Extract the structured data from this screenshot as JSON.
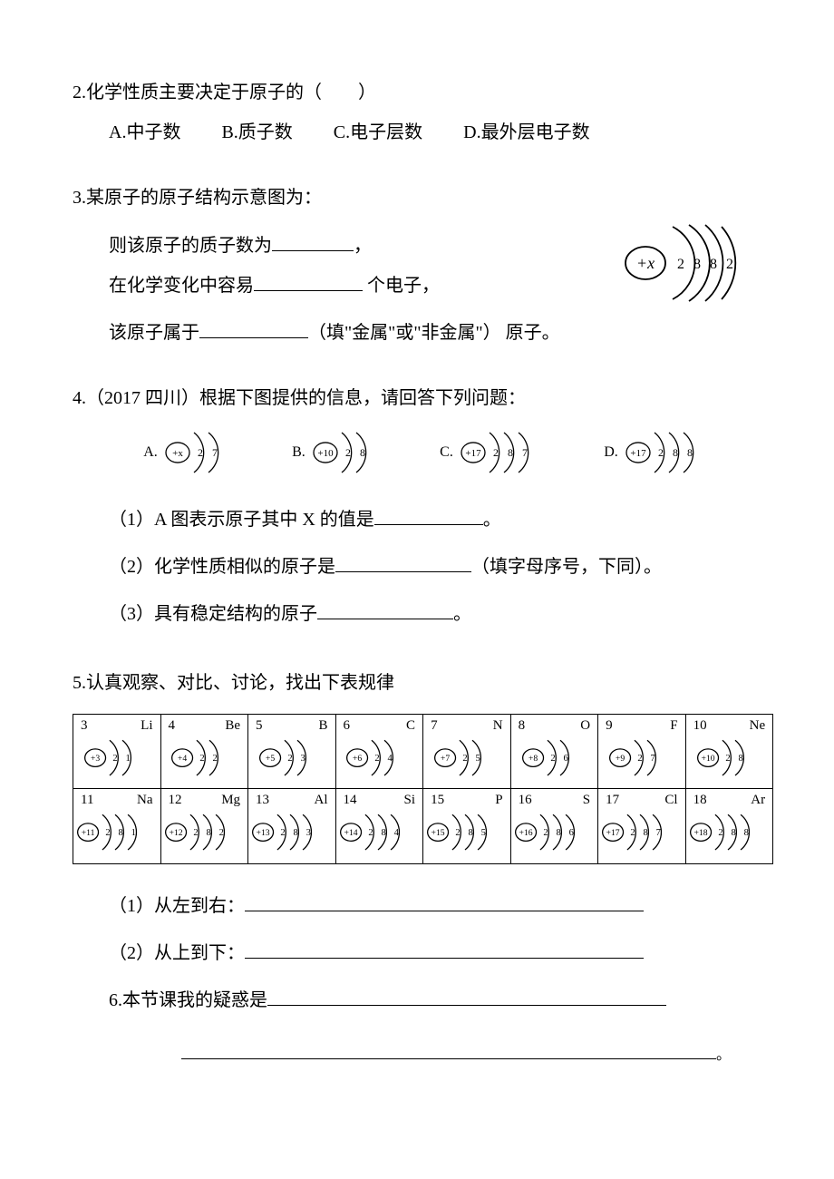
{
  "colors": {
    "text": "#000000",
    "bg": "#ffffff",
    "border": "#000000"
  },
  "typography": {
    "body_fontsize": 20,
    "table_fontsize": 15,
    "line_height": 2.2
  },
  "q2": {
    "text": "2.化学性质主要决定于原子的（　　）",
    "opts": {
      "A": "A.中子数",
      "B": "B.质子数",
      "C": "C.电子层数",
      "D": "D.最外层电子数"
    }
  },
  "q3": {
    "l1": "3.某原子的原子结构示意图为：",
    "l2a": "则该原子的质子数为",
    "l2b": "，",
    "l3a": "在化学变化中容易",
    "l3b": " 个电子，",
    "l4a": "该原子属于",
    "l4b": "（填\"金属\"或\"非金属\"） 原子。",
    "diagram": {
      "nucleus": "+x",
      "shells": [
        2,
        8,
        8,
        2
      ]
    }
  },
  "q4": {
    "stem": "4.（2017 四川）根据下图提供的信息，请回答下列问题：",
    "items": [
      {
        "label": "A.",
        "nucleus": "+x",
        "shells": [
          "2",
          "7"
        ]
      },
      {
        "label": "B.",
        "nucleus": "+10",
        "shells": [
          "2",
          "8"
        ]
      },
      {
        "label": "C.",
        "nucleus": "+17",
        "shells": [
          "2",
          "8",
          "7"
        ]
      },
      {
        "label": "D.",
        "nucleus": "+17",
        "shells": [
          "2",
          "8",
          "8"
        ]
      }
    ],
    "s1a": "（1）A 图表示原子其中 X 的值是",
    "s1b": "。",
    "s2a": "（2）化学性质相似的原子是",
    "s2b": "（填字母序号，下同）。",
    "s3a": "（3）具有稳定结构的原子",
    "s3b": "。"
  },
  "q5": {
    "stem": "5.认真观察、对比、讨论，找出下表规律",
    "table": {
      "row1": [
        {
          "num": "3",
          "sym": "Li",
          "nuc": "+3",
          "sh": [
            "2",
            "1"
          ]
        },
        {
          "num": "4",
          "sym": "Be",
          "nuc": "+4",
          "sh": [
            "2",
            "2"
          ]
        },
        {
          "num": "5",
          "sym": "B",
          "nuc": "+5",
          "sh": [
            "2",
            "3"
          ]
        },
        {
          "num": "6",
          "sym": "C",
          "nuc": "+6",
          "sh": [
            "2",
            "4"
          ]
        },
        {
          "num": "7",
          "sym": "N",
          "nuc": "+7",
          "sh": [
            "2",
            "5"
          ]
        },
        {
          "num": "8",
          "sym": "O",
          "nuc": "+8",
          "sh": [
            "2",
            "6"
          ]
        },
        {
          "num": "9",
          "sym": "F",
          "nuc": "+9",
          "sh": [
            "2",
            "7"
          ]
        },
        {
          "num": "10",
          "sym": "Ne",
          "nuc": "+10",
          "sh": [
            "2",
            "8"
          ]
        }
      ],
      "row2": [
        {
          "num": "11",
          "sym": "Na",
          "nuc": "+11",
          "sh": [
            "2",
            "8",
            "1"
          ]
        },
        {
          "num": "12",
          "sym": "Mg",
          "nuc": "+12",
          "sh": [
            "2",
            "8",
            "2"
          ]
        },
        {
          "num": "13",
          "sym": "Al",
          "nuc": "+13",
          "sh": [
            "2",
            "8",
            "3"
          ]
        },
        {
          "num": "14",
          "sym": "Si",
          "nuc": "+14",
          "sh": [
            "2",
            "8",
            "4"
          ]
        },
        {
          "num": "15",
          "sym": "P",
          "nuc": "+15",
          "sh": [
            "2",
            "8",
            "5"
          ]
        },
        {
          "num": "16",
          "sym": "S",
          "nuc": "+16",
          "sh": [
            "2",
            "8",
            "6"
          ]
        },
        {
          "num": "17",
          "sym": "Cl",
          "nuc": "+17",
          "sh": [
            "2",
            "8",
            "7"
          ]
        },
        {
          "num": "18",
          "sym": "Ar",
          "nuc": "+18",
          "sh": [
            "2",
            "8",
            "8"
          ]
        }
      ]
    },
    "s1": "（1）从左到右：",
    "s2": "（2）从上到下：",
    "s3": "6.本节课我的疑惑是",
    "s4end": "。"
  }
}
